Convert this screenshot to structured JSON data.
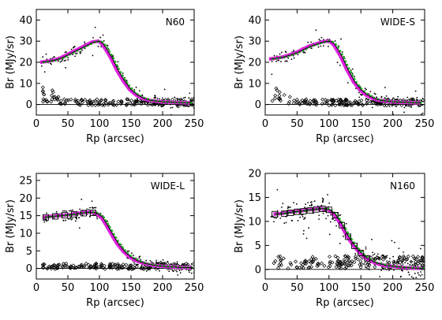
{
  "figure": {
    "colors": {
      "model_a": "#dd22dd",
      "model_b": "#22bb22",
      "scatter": "#000000",
      "box": "#000000"
    }
  },
  "chart_data": [
    {
      "type": "scatter",
      "panel_label": "N60",
      "xlabel": "Rp (arcsec)",
      "ylabel": "Br (MJy/sr)",
      "xlim": [
        0,
        250
      ],
      "ylim": [
        -5,
        45
      ],
      "xticks": [
        0,
        50,
        100,
        150,
        200,
        250
      ],
      "yticks": [
        0,
        10,
        20,
        30,
        40
      ],
      "zero_line": true,
      "profile": {
        "x": [
          8,
          20,
          30,
          40,
          50,
          60,
          70,
          80,
          90,
          100,
          105,
          110,
          120,
          130,
          140,
          150,
          160,
          170,
          180,
          200,
          220,
          245
        ],
        "y": [
          20,
          20.5,
          21,
          22,
          23.5,
          25,
          26.5,
          28,
          29.5,
          30,
          29,
          27,
          22,
          16,
          11,
          7,
          4.5,
          3,
          2,
          1.3,
          1,
          0.8
        ]
      },
      "boxes": {
        "x": [],
        "y": []
      },
      "background_level": 1,
      "background_scatter": 1.5,
      "profile_scatter": 2.5
    },
    {
      "type": "scatter",
      "panel_label": "WIDE-S",
      "xlabel": "Rp (arcsec)",
      "ylabel": "Br (MJy/sr)",
      "xlim": [
        0,
        250
      ],
      "ylim": [
        -5,
        45
      ],
      "xticks": [
        0,
        50,
        100,
        150,
        200,
        250
      ],
      "yticks": [
        0,
        10,
        20,
        30,
        40
      ],
      "zero_line": true,
      "profile": {
        "x": [
          8,
          20,
          30,
          40,
          50,
          60,
          70,
          80,
          90,
          100,
          105,
          110,
          120,
          130,
          140,
          150,
          160,
          170,
          180,
          200,
          220,
          245
        ],
        "y": [
          21.5,
          22,
          22.5,
          23.5,
          24.5,
          26,
          27.5,
          28.5,
          29.5,
          30,
          29.5,
          28,
          23,
          16.5,
          11,
          7,
          4.5,
          3,
          2,
          1.3,
          1,
          0.8
        ]
      },
      "boxes": {
        "x": [],
        "y": []
      },
      "background_level": 1,
      "background_scatter": 1.5,
      "profile_scatter": 2.5
    },
    {
      "type": "scatter",
      "panel_label": "WIDE-L",
      "xlabel": "Rp (arcsec)",
      "ylabel": "Br (MJy/sr)",
      "xlim": [
        0,
        250
      ],
      "ylim": [
        -3,
        27
      ],
      "xticks": [
        0,
        50,
        100,
        150,
        200,
        250
      ],
      "yticks": [
        0,
        5,
        10,
        15,
        20,
        25
      ],
      "zero_line": true,
      "profile": {
        "x": [
          12,
          25,
          40,
          55,
          70,
          85,
          95,
          105,
          112,
          120,
          130,
          140,
          150,
          160,
          175,
          190,
          210,
          230,
          248
        ],
        "y": [
          14.5,
          14.8,
          15,
          15.3,
          15.7,
          16,
          15.8,
          14.5,
          12.5,
          10,
          7,
          4.8,
          3.2,
          2.2,
          1.3,
          0.8,
          0.5,
          0.3,
          0.2
        ]
      },
      "boxes": {
        "x": [
          15,
          30,
          45,
          60,
          75,
          90
        ],
        "y": [
          14.5,
          14.8,
          15.1,
          15.4,
          15.7,
          15.8
        ]
      },
      "background_level": 0.6,
      "background_scatter": 0.8,
      "profile_scatter": 1.5
    },
    {
      "type": "scatter",
      "panel_label": "N160",
      "xlabel": "Rp (arcsec)",
      "ylabel": "Br (MJy/sr)",
      "xlim": [
        0,
        250
      ],
      "ylim": [
        -2,
        20
      ],
      "xticks": [
        0,
        50,
        100,
        150,
        200,
        250
      ],
      "yticks": [
        0,
        5,
        10,
        15,
        20
      ],
      "zero_line": true,
      "profile": {
        "x": [
          15,
          30,
          45,
          60,
          75,
          90,
          100,
          110,
          120,
          130,
          140,
          150,
          160,
          175,
          190,
          210,
          230,
          248
        ],
        "y": [
          11.5,
          11.7,
          12,
          12.2,
          12.5,
          12.7,
          12.5,
          11.5,
          9.5,
          7,
          5,
          3.5,
          2.3,
          1.3,
          0.8,
          0.5,
          0.3,
          0.2
        ]
      },
      "boxes": {
        "x": [
          15,
          30,
          40,
          50,
          60,
          70,
          80,
          90,
          100,
          110,
          120,
          130,
          140,
          150,
          160
        ],
        "y": [
          11.5,
          11.6,
          11.8,
          12,
          12.1,
          12.3,
          12.5,
          12.6,
          12.4,
          11.3,
          9.2,
          6.8,
          4.9,
          3.4,
          2.3
        ]
      },
      "background_level": 1.5,
      "background_scatter": 1.3,
      "profile_scatter": 2.2
    }
  ]
}
